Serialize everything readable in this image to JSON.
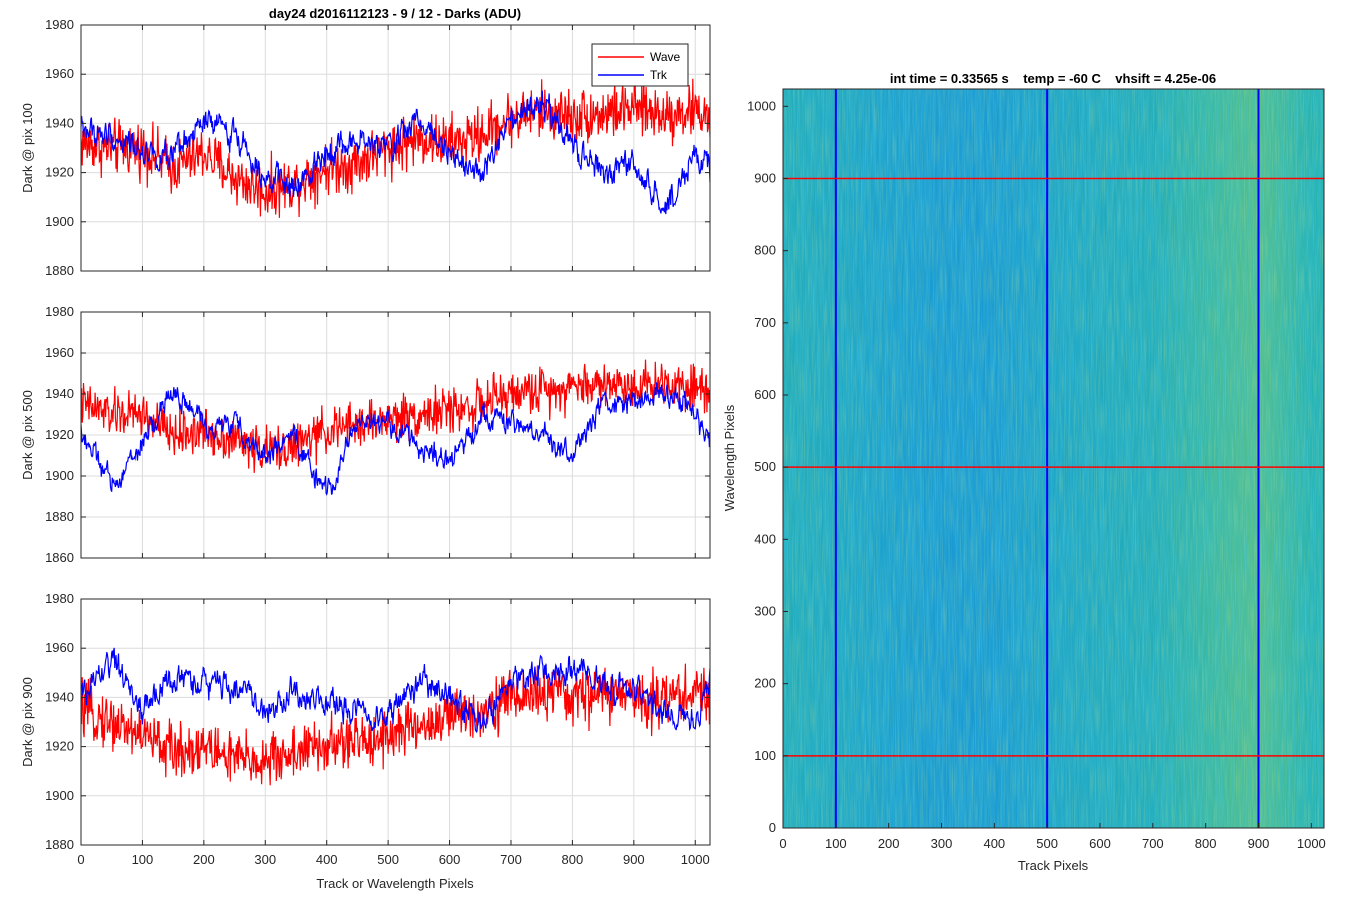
{
  "figure_title": "day24 d2016112123 - 9 / 12 - Darks (ADU)",
  "heatmap_title": "int time = 0.33565 s    temp = -60 C    vhsift = 4.25e-06",
  "colors": {
    "wave": "#ff0000",
    "trk": "#0000ff",
    "grid": "#dcdcdc",
    "axis": "#262626"
  },
  "chart_data": [
    {
      "type": "line",
      "title": "day24 d2016112123 - 9 / 12 - Darks (ADU)",
      "xlabel": "",
      "ylabel": "Dark @ pix 100",
      "xlim": [
        0,
        1024
      ],
      "ylim": [
        1880,
        1980
      ],
      "yticks": [
        "1880",
        "1900",
        "1920",
        "1940",
        "1960",
        "1980"
      ],
      "xticks": [],
      "grid": true,
      "legend": {
        "position": "top-right",
        "entries": [
          "Wave",
          "Trk"
        ]
      },
      "series": [
        {
          "name": "Wave",
          "color": "#ff0000",
          "x": [
            0,
            50,
            100,
            150,
            200,
            250,
            300,
            350,
            400,
            450,
            500,
            550,
            600,
            650,
            700,
            750,
            800,
            850,
            900,
            950,
            1000,
            1024
          ],
          "values": [
            1932,
            1930,
            1930,
            1922,
            1928,
            1918,
            1912,
            1916,
            1922,
            1924,
            1930,
            1934,
            1932,
            1935,
            1942,
            1945,
            1943,
            1944,
            1946,
            1944,
            1945,
            1943
          ]
        },
        {
          "name": "Trk",
          "color": "#0000ff",
          "x": [
            0,
            50,
            100,
            150,
            200,
            250,
            300,
            350,
            400,
            450,
            500,
            550,
            600,
            650,
            700,
            750,
            800,
            850,
            900,
            950,
            1000,
            1024
          ],
          "values": [
            1938,
            1934,
            1930,
            1925,
            1940,
            1936,
            1920,
            1912,
            1930,
            1932,
            1930,
            1942,
            1930,
            1918,
            1940,
            1948,
            1930,
            1920,
            1922,
            1905,
            1928,
            1920
          ]
        }
      ]
    },
    {
      "type": "line",
      "xlabel": "",
      "ylabel": "Dark @ pix 500",
      "xlim": [
        0,
        1024
      ],
      "ylim": [
        1860,
        1980
      ],
      "yticks": [
        "1860",
        "1880",
        "1900",
        "1920",
        "1940",
        "1960",
        "1980"
      ],
      "xticks": [],
      "grid": true,
      "series": [
        {
          "name": "Wave",
          "color": "#ff0000",
          "x": [
            0,
            50,
            100,
            150,
            200,
            250,
            300,
            350,
            400,
            450,
            500,
            550,
            600,
            650,
            700,
            750,
            800,
            850,
            900,
            950,
            1000,
            1024
          ],
          "values": [
            1935,
            1930,
            1930,
            1920,
            1922,
            1918,
            1912,
            1915,
            1922,
            1925,
            1928,
            1930,
            1932,
            1935,
            1940,
            1942,
            1944,
            1945,
            1944,
            1946,
            1944,
            1942
          ]
        },
        {
          "name": "Trk",
          "color": "#0000ff",
          "x": [
            0,
            50,
            100,
            150,
            200,
            250,
            300,
            350,
            400,
            450,
            500,
            550,
            600,
            650,
            700,
            750,
            800,
            850,
            900,
            950,
            1000,
            1024
          ],
          "values": [
            1922,
            1895,
            1915,
            1942,
            1925,
            1925,
            1910,
            1918,
            1890,
            1928,
            1925,
            1915,
            1905,
            1930,
            1925,
            1920,
            1910,
            1935,
            1935,
            1942,
            1932,
            1912
          ]
        }
      ]
    },
    {
      "type": "line",
      "xlabel": "Track or Wavelength Pixels",
      "ylabel": "Dark @ pix 900",
      "xlim": [
        0,
        1024
      ],
      "ylim": [
        1880,
        1980
      ],
      "yticks": [
        "1880",
        "1900",
        "1920",
        "1940",
        "1960",
        "1980"
      ],
      "xticks": [
        "0",
        "100",
        "200",
        "300",
        "400",
        "500",
        "600",
        "700",
        "800",
        "900",
        "1000"
      ],
      "grid": true,
      "series": [
        {
          "name": "Wave",
          "color": "#ff0000",
          "x": [
            0,
            50,
            100,
            150,
            200,
            250,
            300,
            350,
            400,
            450,
            500,
            550,
            600,
            650,
            700,
            750,
            800,
            850,
            900,
            950,
            1000,
            1024
          ],
          "values": [
            1935,
            1930,
            1925,
            1918,
            1920,
            1915,
            1914,
            1918,
            1920,
            1922,
            1925,
            1928,
            1932,
            1935,
            1940,
            1942,
            1940,
            1942,
            1940,
            1940,
            1942,
            1940
          ]
        },
        {
          "name": "Trk",
          "color": "#0000ff",
          "x": [
            0,
            50,
            100,
            150,
            200,
            250,
            300,
            350,
            400,
            450,
            500,
            550,
            600,
            650,
            700,
            750,
            800,
            850,
            900,
            950,
            1000,
            1024
          ],
          "values": [
            1940,
            1955,
            1935,
            1948,
            1945,
            1945,
            1935,
            1942,
            1938,
            1935,
            1932,
            1946,
            1940,
            1930,
            1945,
            1950,
            1950,
            1946,
            1942,
            1935,
            1930,
            1948
          ]
        }
      ]
    },
    {
      "type": "heatmap",
      "title": "int time = 0.33565 s    temp = -60 C    vhsift = 4.25e-06",
      "xlabel": "Track Pixels",
      "ylabel": "Wavelength Pixels",
      "xlim": [
        0,
        1024
      ],
      "ylim": [
        0,
        1024
      ],
      "xticks": [
        "0",
        "100",
        "200",
        "300",
        "400",
        "500",
        "600",
        "700",
        "800",
        "900",
        "1000"
      ],
      "yticks": [
        "0",
        "100",
        "200",
        "300",
        "400",
        "500",
        "600",
        "700",
        "800",
        "900",
        "1000"
      ],
      "vertical_markers": {
        "values": [
          100,
          500,
          900
        ],
        "color": "#0000ff"
      },
      "horizontal_markers": {
        "values": [
          100,
          500,
          900
        ],
        "color": "#ff0000"
      },
      "column_profile": {
        "x": [
          0,
          100,
          200,
          300,
          400,
          500,
          600,
          700,
          800,
          900,
          1000,
          1024
        ],
        "level": [
          0.45,
          0.4,
          0.32,
          0.27,
          0.28,
          0.36,
          0.42,
          0.45,
          0.55,
          0.62,
          0.5,
          0.5
        ]
      }
    }
  ]
}
